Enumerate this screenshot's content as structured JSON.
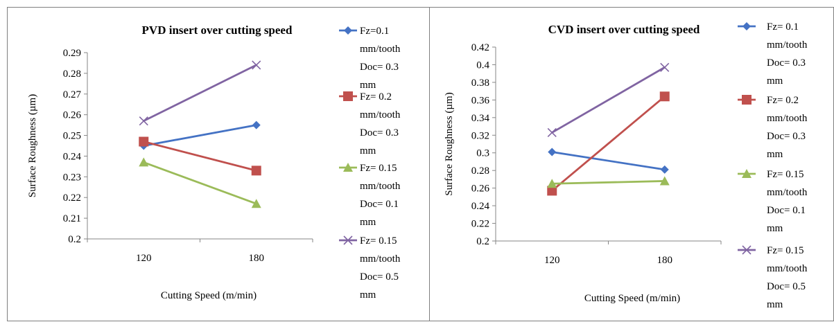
{
  "chart_data": [
    {
      "type": "line",
      "title": "PVD insert over cutting speed",
      "xlabel": "Cutting Speed (m/min)",
      "ylabel": "Surface Roughness  (µm)",
      "categories": [
        "120",
        "180"
      ],
      "ylim": [
        0.2,
        0.29
      ],
      "yticks": [
        "0.2",
        "0.21",
        "0.22",
        "0.23",
        "0.24",
        "0.25",
        "0.26",
        "0.27",
        "0.28",
        "0.29"
      ],
      "grid": false,
      "legend_position": "right",
      "series": [
        {
          "name_lines": [
            "Fz=0.1",
            "mm/tooth",
            "Doc= 0.3",
            "mm"
          ],
          "values": [
            0.245,
            0.255
          ],
          "color": "#4472c4",
          "marker": "diamond"
        },
        {
          "name_lines": [
            "Fz= 0.2",
            "mm/tooth",
            "Doc= 0.3",
            "mm"
          ],
          "values": [
            0.247,
            0.233
          ],
          "color": "#c0504d",
          "marker": "square"
        },
        {
          "name_lines": [
            "Fz= 0.15",
            "mm/tooth",
            "Doc= 0.1",
            "mm"
          ],
          "values": [
            0.237,
            0.217
          ],
          "color": "#9bbb59",
          "marker": "triangle"
        },
        {
          "name_lines": [
            "Fz= 0.15",
            "mm/tooth",
            "Doc= 0.5",
            "mm"
          ],
          "values": [
            0.257,
            0.284
          ],
          "color": "#8064a2",
          "marker": "x"
        }
      ]
    },
    {
      "type": "line",
      "title": "CVD insert over cutting  speed",
      "xlabel": "Cutting Speed (m/min)",
      "ylabel": "Surface Roughness  (µm)",
      "categories": [
        "120",
        "180"
      ],
      "ylim": [
        0.2,
        0.42
      ],
      "yticks": [
        "0.2",
        "0.22",
        "0.24",
        "0.26",
        "0.28",
        "0.3",
        "0.32",
        "0.34",
        "0.36",
        "0.38",
        "0.4",
        "0.42"
      ],
      "grid": false,
      "legend_position": "right",
      "series": [
        {
          "name_lines": [
            "Fz= 0.1",
            "mm/tooth",
            "Doc= 0.3",
            "mm"
          ],
          "values": [
            0.301,
            0.281
          ],
          "color": "#4472c4",
          "marker": "diamond"
        },
        {
          "name_lines": [
            "Fz= 0.2",
            "mm/tooth",
            "Doc= 0.3",
            "mm"
          ],
          "values": [
            0.257,
            0.364
          ],
          "color": "#c0504d",
          "marker": "square"
        },
        {
          "name_lines": [
            "Fz= 0.15",
            "mm/tooth",
            "Doc= 0.1",
            "mm"
          ],
          "values": [
            0.265,
            0.268
          ],
          "color": "#9bbb59",
          "marker": "triangle"
        },
        {
          "name_lines": [
            "Fz= 0.15",
            "mm/tooth",
            "Doc= 0.5",
            "mm"
          ],
          "values": [
            0.323,
            0.397
          ],
          "color": "#8064a2",
          "marker": "x"
        }
      ]
    }
  ]
}
